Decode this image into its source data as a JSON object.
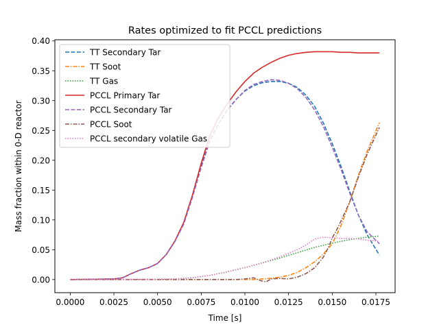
{
  "chart_data": {
    "type": "line",
    "title": "Rates optimized to fit PCCL predictions",
    "xlabel": "Time [s]",
    "ylabel": "Mass fraction within 0-D reactor",
    "xlim": [
      -0.00088,
      0.0186
    ],
    "ylim": [
      -0.022,
      0.402
    ],
    "xticks": [
      "0.0000",
      "0.0025",
      "0.0050",
      "0.0075",
      "0.0100",
      "0.0125",
      "0.0150",
      "0.0175"
    ],
    "yticks": [
      "0.00",
      "0.05",
      "0.10",
      "0.15",
      "0.20",
      "0.25",
      "0.30",
      "0.35",
      "0.40"
    ],
    "grid": false,
    "legend_position": "upper-left",
    "series": [
      {
        "name": "TT Secondary Tar",
        "color": "#1f77b4",
        "dash": "6,2.5",
        "x": [
          0,
          0.0025,
          0.003,
          0.0035,
          0.004,
          0.0045,
          0.005,
          0.0055,
          0.006,
          0.0065,
          0.007,
          0.0075,
          0.008,
          0.0085,
          0.009,
          0.0095,
          0.01,
          0.0105,
          0.011,
          0.0115,
          0.012,
          0.0125,
          0.013,
          0.0135,
          0.014,
          0.0145,
          0.015,
          0.0155,
          0.016,
          0.0165,
          0.017,
          0.0177
        ],
        "y": [
          0,
          0.001,
          0.003,
          0.01,
          0.016,
          0.02,
          0.027,
          0.042,
          0.065,
          0.095,
          0.14,
          0.19,
          0.235,
          0.262,
          0.285,
          0.302,
          0.316,
          0.325,
          0.33,
          0.332,
          0.332,
          0.329,
          0.322,
          0.309,
          0.29,
          0.262,
          0.228,
          0.19,
          0.148,
          0.108,
          0.075,
          0.041
        ]
      },
      {
        "name": "TT Soot",
        "color": "#ff7f0e",
        "dash": "6,2,1.5,2",
        "x": [
          0,
          0.0105,
          0.011,
          0.0115,
          0.012,
          0.0125,
          0.013,
          0.0135,
          0.014,
          0.0145,
          0.015,
          0.0155,
          0.016,
          0.0165,
          0.017,
          0.0177
        ],
        "y": [
          0,
          0,
          0.001,
          0.002,
          0.004,
          0.007,
          0.012,
          0.02,
          0.03,
          0.043,
          0.06,
          0.09,
          0.13,
          0.175,
          0.215,
          0.263
        ]
      },
      {
        "name": "TT Gas",
        "color": "#2ca02c",
        "dash": "1.5,2",
        "x": [
          0,
          0.005,
          0.006,
          0.007,
          0.008,
          0.009,
          0.01,
          0.011,
          0.012,
          0.013,
          0.014,
          0.015,
          0.016,
          0.017,
          0.0177
        ],
        "y": [
          0,
          0.0005,
          0.001,
          0.003,
          0.007,
          0.013,
          0.02,
          0.028,
          0.036,
          0.045,
          0.054,
          0.061,
          0.067,
          0.071,
          0.073
        ]
      },
      {
        "name": "PCCL Primary Tar",
        "color": "#d62728",
        "dash": "",
        "x": [
          0,
          0.0025,
          0.003,
          0.0035,
          0.004,
          0.0045,
          0.005,
          0.0055,
          0.006,
          0.0065,
          0.007,
          0.0075,
          0.008,
          0.0085,
          0.009,
          0.0095,
          0.01,
          0.0105,
          0.011,
          0.0115,
          0.012,
          0.0125,
          0.013,
          0.0135,
          0.014,
          0.0145,
          0.015,
          0.0155,
          0.016,
          0.0165,
          0.017,
          0.0177
        ],
        "y": [
          0,
          0.001,
          0.003,
          0.01,
          0.016,
          0.02,
          0.027,
          0.042,
          0.065,
          0.096,
          0.142,
          0.195,
          0.242,
          0.272,
          0.295,
          0.315,
          0.332,
          0.346,
          0.356,
          0.364,
          0.371,
          0.376,
          0.379,
          0.381,
          0.382,
          0.382,
          0.382,
          0.381,
          0.381,
          0.38,
          0.38,
          0.38
        ]
      },
      {
        "name": "PCCL Secondary Tar",
        "color": "#9467bd",
        "dash": "6,2.5",
        "x": [
          0,
          0.0025,
          0.003,
          0.0035,
          0.004,
          0.0045,
          0.005,
          0.0055,
          0.006,
          0.0065,
          0.007,
          0.0075,
          0.008,
          0.0085,
          0.009,
          0.0095,
          0.01,
          0.0105,
          0.011,
          0.0115,
          0.012,
          0.0125,
          0.013,
          0.0135,
          0.014,
          0.0145,
          0.015,
          0.0155,
          0.016,
          0.0165,
          0.017,
          0.0177
        ],
        "y": [
          0,
          0.001,
          0.003,
          0.01,
          0.016,
          0.02,
          0.027,
          0.042,
          0.064,
          0.093,
          0.138,
          0.188,
          0.233,
          0.261,
          0.284,
          0.302,
          0.317,
          0.327,
          0.332,
          0.335,
          0.334,
          0.329,
          0.32,
          0.305,
          0.284,
          0.256,
          0.222,
          0.185,
          0.145,
          0.108,
          0.08,
          0.06
        ]
      },
      {
        "name": "PCCL Soot",
        "color": "#8c564b",
        "dash": "6,2,1.5,2",
        "x": [
          0,
          0.0095,
          0.01,
          0.0105,
          0.0108,
          0.0112,
          0.0115,
          0.012,
          0.0125,
          0.013,
          0.0135,
          0.014,
          0.0145,
          0.0148,
          0.015,
          0.0152,
          0.0155,
          0.016,
          0.0165,
          0.017,
          0.0177
        ],
        "y": [
          0,
          0,
          0.001,
          0.003,
          -0.001,
          -0.004,
          0.001,
          0.002,
          0.001,
          0.004,
          0.01,
          0.02,
          0.038,
          0.055,
          0.07,
          0.08,
          0.098,
          0.13,
          0.172,
          0.21,
          0.255
        ]
      },
      {
        "name": "PCCL secondary volatile Gas",
        "color": "#e377c2",
        "dash": "1.5,2",
        "x": [
          0,
          0.005,
          0.006,
          0.007,
          0.008,
          0.009,
          0.01,
          0.011,
          0.012,
          0.013,
          0.0135,
          0.014,
          0.0145,
          0.015,
          0.0155,
          0.016,
          0.0165,
          0.017,
          0.0177
        ],
        "y": [
          0,
          0.0005,
          0.001,
          0.003,
          0.007,
          0.013,
          0.02,
          0.028,
          0.038,
          0.05,
          0.058,
          0.068,
          0.071,
          0.07,
          0.069,
          0.069,
          0.068,
          0.066,
          0.064
        ]
      }
    ]
  }
}
